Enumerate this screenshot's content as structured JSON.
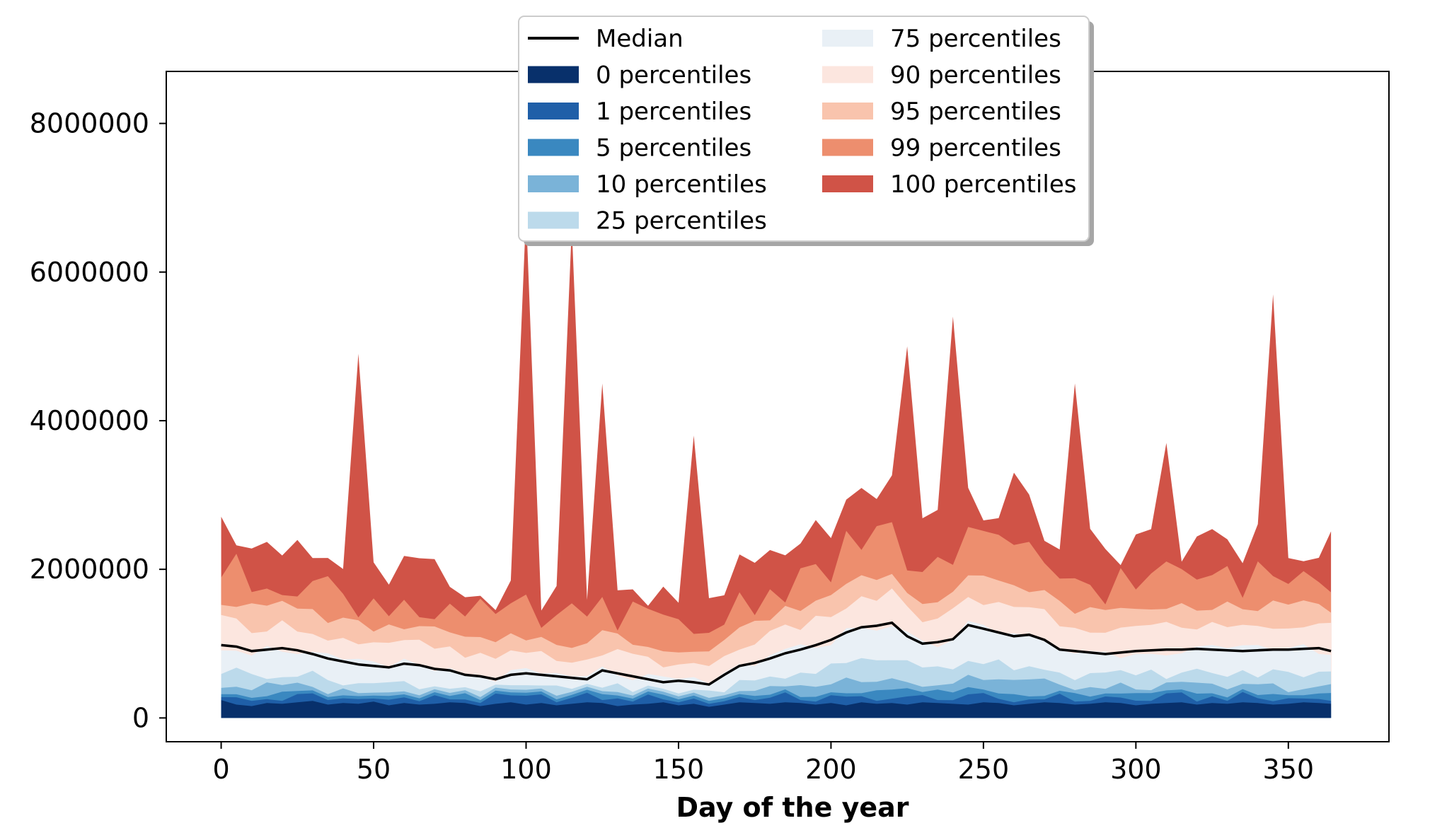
{
  "chart_data": {
    "type": "area",
    "title": "",
    "xlabel": "Day of the year",
    "ylabel": "",
    "xlim": [
      -18,
      383
    ],
    "ylim": [
      -320000,
      8700000
    ],
    "xticks": [
      0,
      50,
      100,
      150,
      200,
      250,
      300,
      350
    ],
    "yticks": [
      0,
      2000000,
      4000000,
      6000000,
      8000000
    ],
    "grid": false,
    "legend_position": "top-center",
    "legend": [
      {
        "label": "Median",
        "kind": "line",
        "color": "#000000"
      },
      {
        "label": "0 percentiles",
        "kind": "patch",
        "color": "#08306b"
      },
      {
        "label": "1 percentiles",
        "kind": "patch",
        "color": "#1f5fa8"
      },
      {
        "label": "5 percentiles",
        "kind": "patch",
        "color": "#3a88c0"
      },
      {
        "label": "10 percentiles",
        "kind": "patch",
        "color": "#7ab3d8"
      },
      {
        "label": "25 percentiles",
        "kind": "patch",
        "color": "#bcdaeb"
      },
      {
        "label": "75 percentiles",
        "kind": "patch",
        "color": "#e9f0f6"
      },
      {
        "label": "90 percentiles",
        "kind": "patch",
        "color": "#fce6df"
      },
      {
        "label": "95 percentiles",
        "kind": "patch",
        "color": "#f9c4ad"
      },
      {
        "label": "99 percentiles",
        "kind": "patch",
        "color": "#ed8e6e"
      },
      {
        "label": "100 percentiles",
        "kind": "patch",
        "color": "#d05347"
      }
    ],
    "x": [
      0,
      5,
      10,
      15,
      20,
      25,
      30,
      35,
      40,
      45,
      50,
      55,
      60,
      65,
      70,
      75,
      80,
      85,
      90,
      95,
      100,
      105,
      110,
      115,
      120,
      125,
      130,
      135,
      140,
      145,
      150,
      155,
      160,
      165,
      170,
      175,
      180,
      185,
      190,
      195,
      200,
      205,
      210,
      215,
      220,
      225,
      230,
      235,
      240,
      245,
      250,
      255,
      260,
      265,
      270,
      275,
      280,
      285,
      290,
      295,
      300,
      305,
      310,
      315,
      320,
      325,
      330,
      335,
      340,
      345,
      350,
      355,
      360,
      364
    ],
    "series": [
      {
        "name": "Median",
        "values": [
          980000,
          960000,
          900000,
          920000,
          940000,
          910000,
          860000,
          800000,
          760000,
          720000,
          700000,
          680000,
          730000,
          710000,
          660000,
          640000,
          580000,
          560000,
          520000,
          580000,
          600000,
          580000,
          560000,
          540000,
          520000,
          640000,
          600000,
          560000,
          520000,
          480000,
          500000,
          480000,
          450000,
          580000,
          700000,
          740000,
          800000,
          870000,
          920000,
          980000,
          1050000,
          1150000,
          1220000,
          1240000,
          1280000,
          1100000,
          1000000,
          1020000,
          1060000,
          1250000,
          1200000,
          1150000,
          1100000,
          1120000,
          1050000,
          920000,
          900000,
          880000,
          860000,
          880000,
          900000,
          910000,
          920000,
          920000,
          930000,
          920000,
          910000,
          900000,
          910000,
          920000,
          920000,
          930000,
          940000,
          900000
        ]
      },
      {
        "name": "0 percentiles",
        "values": [
          240000,
          180000,
          160000,
          200000,
          190000,
          210000,
          230000,
          180000,
          200000,
          190000,
          220000,
          170000,
          200000,
          180000,
          190000,
          210000,
          200000,
          160000,
          190000,
          210000,
          180000,
          200000,
          170000,
          190000,
          210000,
          200000,
          160000,
          180000,
          190000,
          210000,
          170000,
          190000,
          150000,
          180000,
          210000,
          200000,
          190000,
          210000,
          200000,
          180000,
          200000,
          170000,
          210000,
          190000,
          200000,
          180000,
          210000,
          200000,
          190000,
          180000,
          210000,
          200000,
          170000,
          190000,
          210000,
          200000,
          180000,
          190000,
          210000,
          200000,
          170000,
          190000,
          200000,
          210000,
          180000,
          200000,
          190000,
          210000,
          200000,
          180000,
          190000,
          210000,
          200000,
          190000
        ]
      }
    ],
    "spikes_100th": [
      {
        "x": 44,
        "y": 4900000
      },
      {
        "x": 100,
        "y": 6800000
      },
      {
        "x": 115,
        "y": 6600000
      },
      {
        "x": 127,
        "y": 4500000
      },
      {
        "x": 153,
        "y": 3800000
      },
      {
        "x": 227,
        "y": 5000000
      },
      {
        "x": 238,
        "y": 5400000
      },
      {
        "x": 262,
        "y": 3300000
      },
      {
        "x": 278,
        "y": 4500000
      },
      {
        "x": 311,
        "y": 3700000
      },
      {
        "x": 344,
        "y": 5700000
      }
    ]
  }
}
